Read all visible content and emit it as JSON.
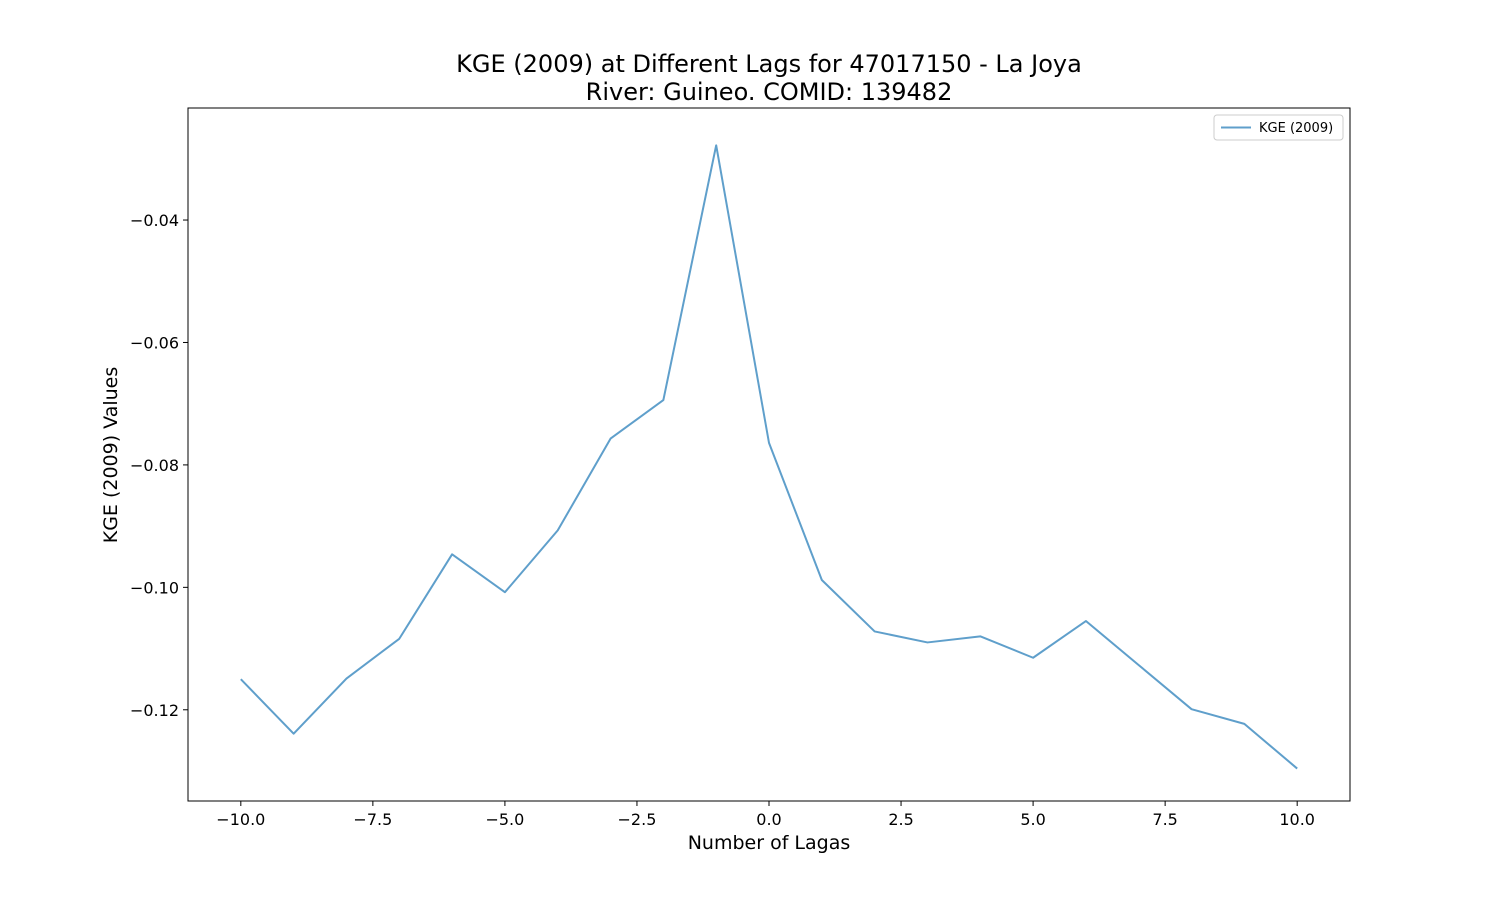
{
  "chart_data": {
    "type": "line",
    "title_line1": "KGE (2009) at Different Lags for 47017150 - La Joya",
    "title_line2": "River: Guineo. COMID: 139482",
    "xlabel": "Number of Lagas",
    "ylabel": "KGE (2009) Values",
    "xlim": [
      -11,
      11
    ],
    "ylim": [
      -0.1349,
      -0.0217
    ],
    "x_ticks": [
      -10.0,
      -7.5,
      -5.0,
      -2.5,
      0.0,
      2.5,
      5.0,
      7.5,
      10.0
    ],
    "x_tick_labels": [
      "−10.0",
      "−7.5",
      "−5.0",
      "−2.5",
      "0.0",
      "2.5",
      "5.0",
      "7.5",
      "10.0"
    ],
    "y_ticks": [
      -0.04,
      -0.06,
      -0.08,
      -0.1,
      -0.12
    ],
    "y_tick_labels": [
      "−0.04",
      "−0.06",
      "−0.08",
      "−0.10",
      "−0.12"
    ],
    "grid": false,
    "legend_position": "top-right",
    "series": [
      {
        "name": "KGE (2009)",
        "color": "#5f9fcb",
        "x": [
          -10,
          -9,
          -8,
          -7,
          -6,
          -5,
          -4,
          -3,
          -2,
          -1,
          0,
          1,
          2,
          3,
          4,
          5,
          6,
          7,
          8,
          9,
          10
        ],
        "y": [
          -0.115,
          -0.1239,
          -0.1149,
          -0.1084,
          -0.0946,
          -0.1008,
          -0.0907,
          -0.0757,
          -0.0694,
          -0.0278,
          -0.0764,
          -0.0988,
          -0.1072,
          -0.109,
          -0.108,
          -0.1115,
          -0.1055,
          -0.1127,
          -0.1199,
          -0.1223,
          -0.1296
        ]
      }
    ]
  }
}
